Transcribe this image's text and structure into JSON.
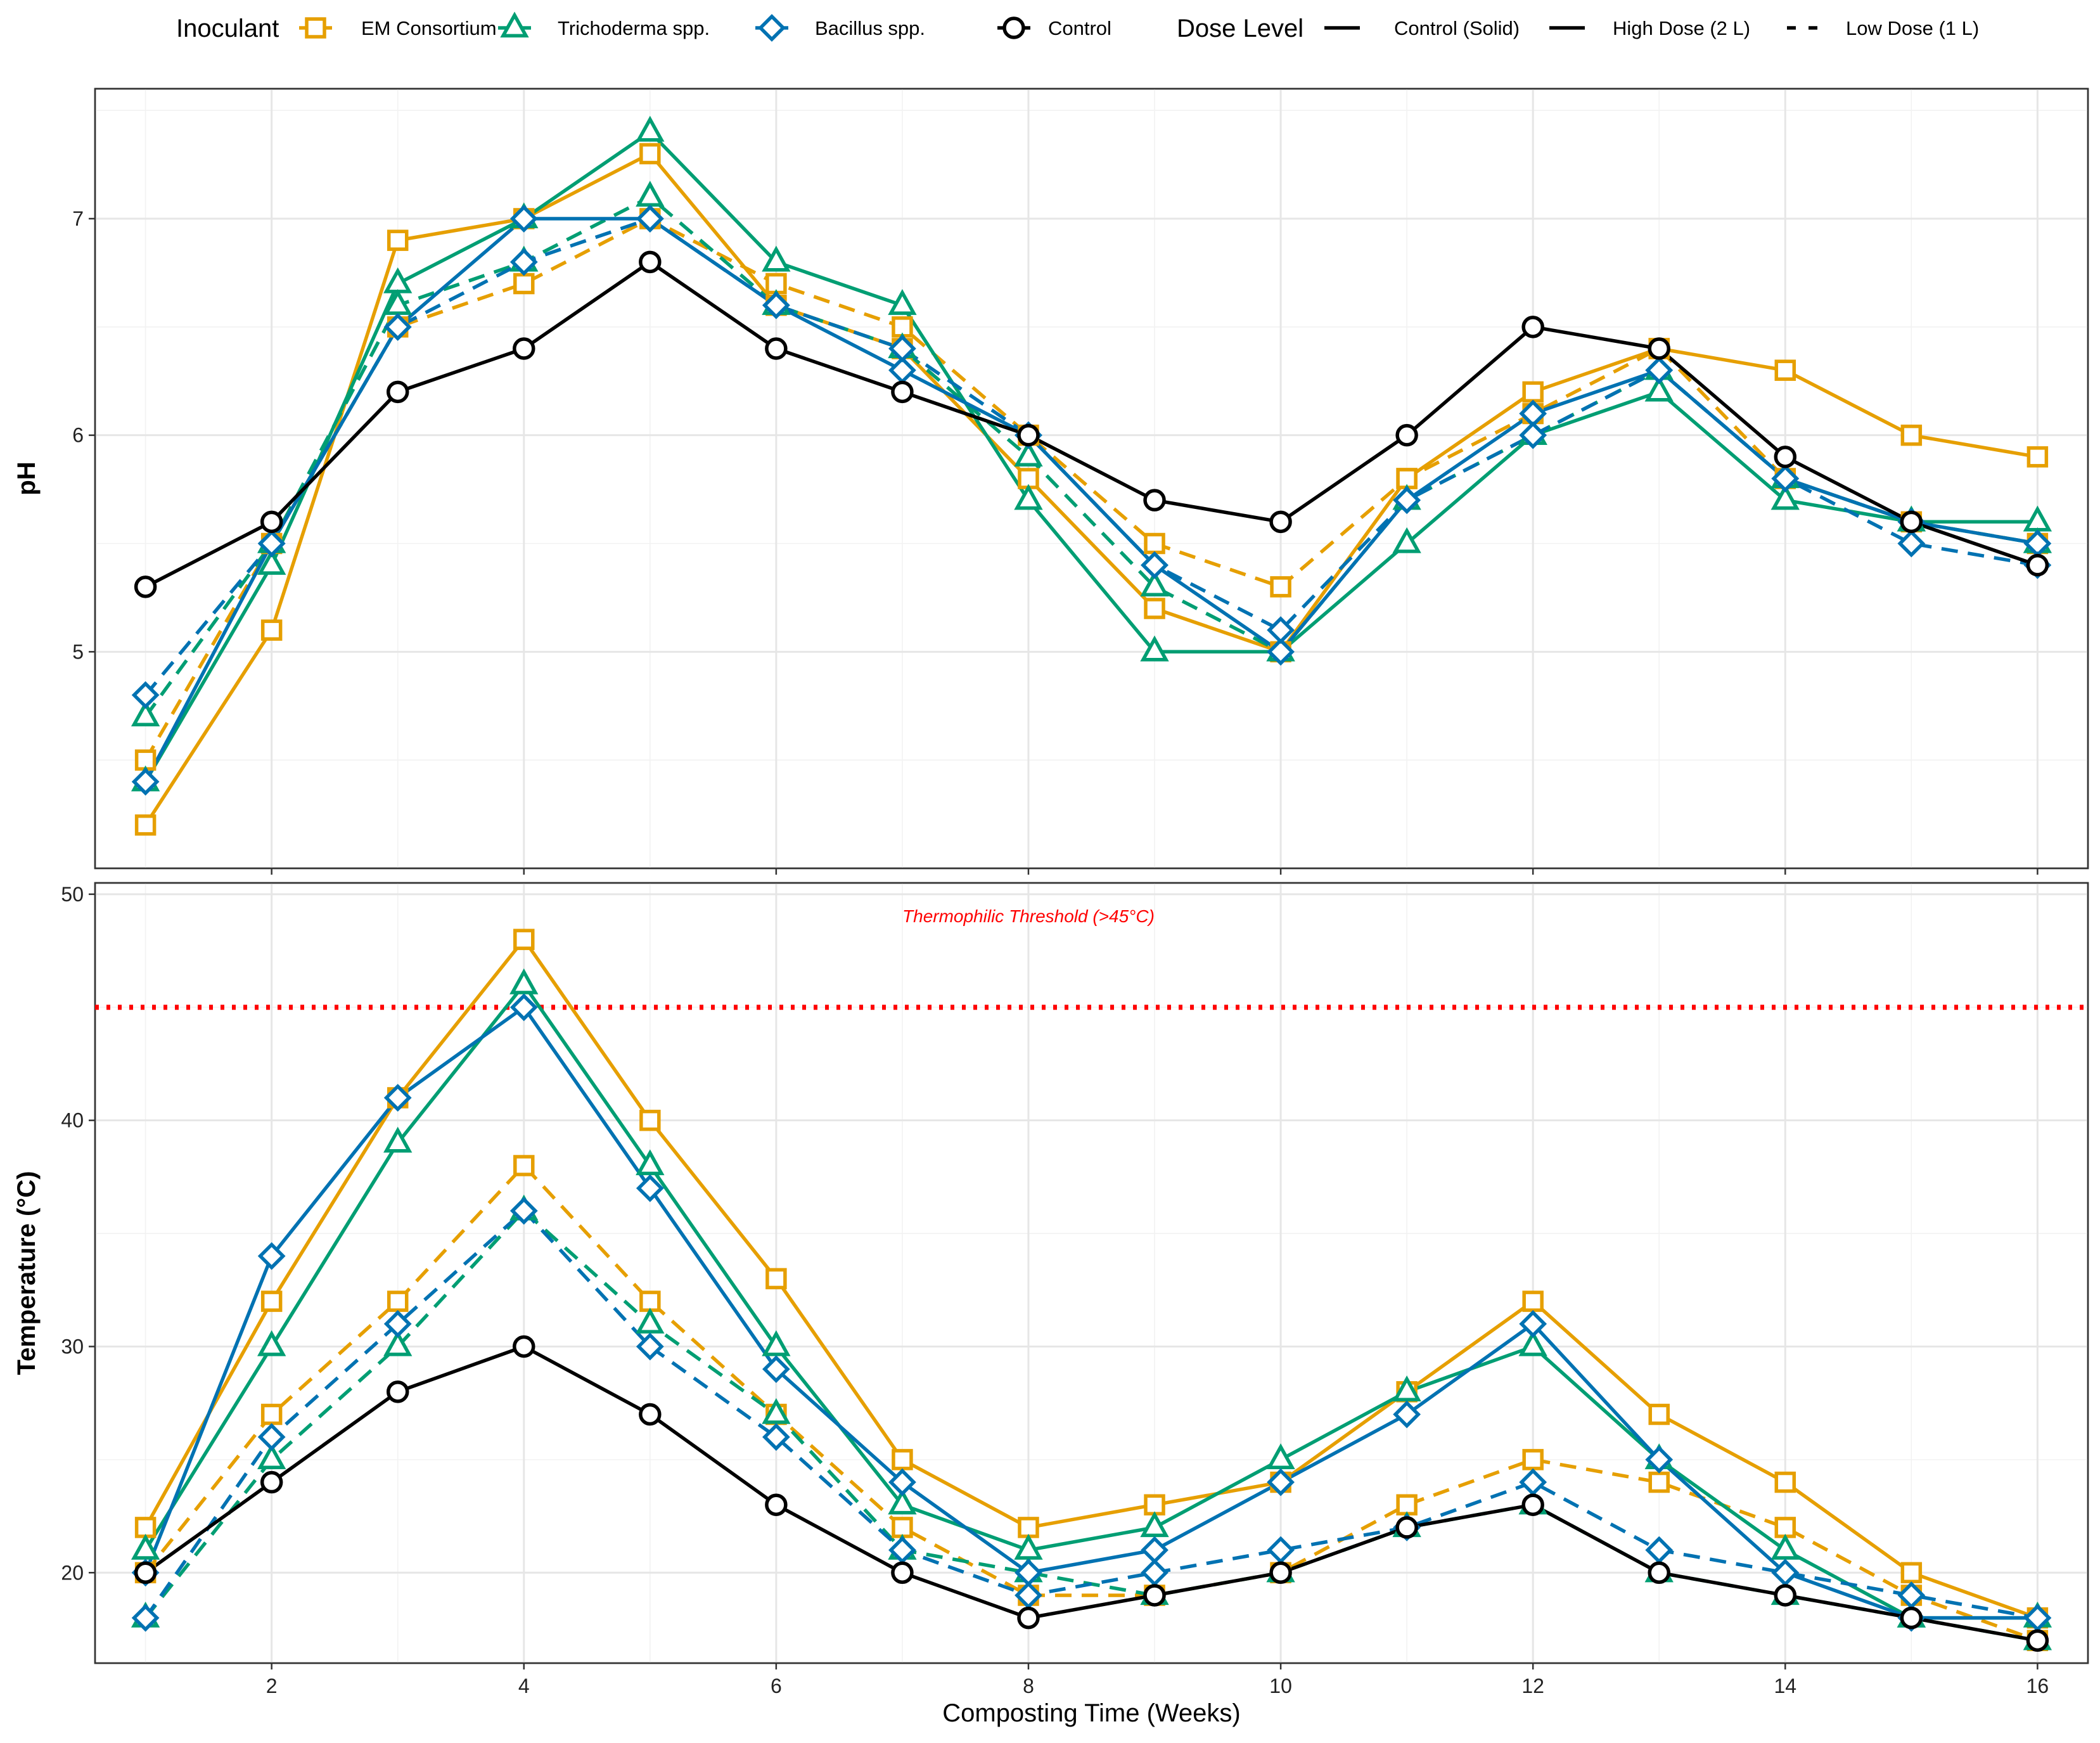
{
  "chart_data": [
    {
      "type": "line",
      "panel": "pH",
      "xlabel": "",
      "ylabel": "pH",
      "xlim": [
        0.6,
        16.4
      ],
      "ylim": [
        4.0,
        7.6
      ],
      "xticks": [
        2,
        4,
        6,
        8,
        10,
        12,
        14,
        16
      ],
      "yticks": [
        5,
        6,
        7
      ],
      "x": [
        1,
        2,
        3,
        4,
        5,
        6,
        7,
        8,
        9,
        10,
        11,
        12,
        13,
        14,
        15,
        16
      ],
      "series": [
        {
          "inoculant": "EM Consortium",
          "dose": "High Dose (2 L)",
          "values": [
            4.2,
            5.1,
            6.9,
            7.0,
            7.3,
            6.6,
            6.4,
            5.8,
            5.2,
            5.0,
            5.8,
            6.2,
            6.4,
            6.3,
            6.0,
            5.9
          ]
        },
        {
          "inoculant": "EM Consortium",
          "dose": "Low Dose (1 L)",
          "values": [
            4.5,
            5.5,
            6.5,
            6.7,
            7.0,
            6.7,
            6.5,
            6.0,
            5.5,
            5.3,
            5.8,
            6.1,
            6.4,
            5.8,
            5.6,
            5.5
          ]
        },
        {
          "inoculant": "Trichoderma spp.",
          "dose": "High Dose (2 L)",
          "values": [
            4.4,
            5.4,
            6.7,
            7.0,
            7.4,
            6.8,
            6.6,
            5.7,
            5.0,
            5.0,
            5.5,
            6.0,
            6.2,
            5.7,
            5.6,
            5.6
          ]
        },
        {
          "inoculant": "Trichoderma spp.",
          "dose": "Low Dose (1 L)",
          "values": [
            4.7,
            5.5,
            6.6,
            6.8,
            7.1,
            6.6,
            6.4,
            5.9,
            5.3,
            5.0,
            5.7,
            6.0,
            6.3,
            5.8,
            5.6,
            5.5
          ]
        },
        {
          "inoculant": "Bacillus spp.",
          "dose": "High Dose (2 L)",
          "values": [
            4.4,
            5.5,
            6.5,
            7.0,
            7.0,
            6.6,
            6.3,
            6.0,
            5.4,
            5.0,
            5.7,
            6.1,
            6.3,
            5.8,
            5.6,
            5.5
          ]
        },
        {
          "inoculant": "Bacillus spp.",
          "dose": "Low Dose (1 L)",
          "values": [
            4.8,
            5.5,
            6.5,
            6.8,
            7.0,
            6.6,
            6.4,
            6.0,
            5.4,
            5.1,
            5.7,
            6.0,
            6.3,
            5.8,
            5.5,
            5.4
          ]
        },
        {
          "inoculant": "Control",
          "dose": "Control (Solid)",
          "values": [
            5.3,
            5.6,
            6.2,
            6.4,
            6.8,
            6.4,
            6.2,
            6.0,
            5.7,
            5.6,
            6.0,
            6.5,
            6.4,
            5.9,
            5.6,
            5.4
          ]
        }
      ]
    },
    {
      "type": "line",
      "panel": "Temperature",
      "xlabel": "Composting Time (Weeks)",
      "ylabel": "Temperature (°C)",
      "xlim": [
        0.6,
        16.4
      ],
      "ylim": [
        16.0,
        50.5
      ],
      "xticks": [
        2,
        4,
        6,
        8,
        10,
        12,
        14,
        16
      ],
      "yticks": [
        20,
        30,
        40,
        50
      ],
      "x": [
        1,
        2,
        3,
        4,
        5,
        6,
        7,
        8,
        9,
        10,
        11,
        12,
        13,
        14,
        15,
        16
      ],
      "threshold": {
        "value": 45,
        "label": "Thermophilic Threshold (>45°C)",
        "color": "#ff0000"
      },
      "series": [
        {
          "inoculant": "EM Consortium",
          "dose": "High Dose (2 L)",
          "values": [
            22,
            32,
            41,
            48,
            40,
            33,
            25,
            22,
            23,
            24,
            28,
            32,
            27,
            24,
            20,
            18
          ]
        },
        {
          "inoculant": "EM Consortium",
          "dose": "Low Dose (1 L)",
          "values": [
            20,
            27,
            32,
            38,
            32,
            27,
            22,
            19,
            19,
            20,
            23,
            25,
            24,
            22,
            19,
            17
          ]
        },
        {
          "inoculant": "Trichoderma spp.",
          "dose": "High Dose (2 L)",
          "values": [
            21,
            30,
            39,
            46,
            38,
            30,
            23,
            21,
            22,
            25,
            28,
            30,
            25,
            21,
            18,
            18
          ]
        },
        {
          "inoculant": "Trichoderma spp.",
          "dose": "Low Dose (1 L)",
          "values": [
            18,
            25,
            30,
            36,
            31,
            27,
            21,
            20,
            19,
            20,
            22,
            23,
            20,
            19,
            18,
            17
          ]
        },
        {
          "inoculant": "Bacillus spp.",
          "dose": "High Dose (2 L)",
          "values": [
            20,
            34,
            41,
            45,
            37,
            29,
            24,
            20,
            21,
            24,
            27,
            31,
            25,
            20,
            18,
            18
          ]
        },
        {
          "inoculant": "Bacillus spp.",
          "dose": "Low Dose (1 L)",
          "values": [
            18,
            26,
            31,
            36,
            30,
            26,
            21,
            19,
            20,
            21,
            22,
            24,
            21,
            20,
            19,
            18
          ]
        },
        {
          "inoculant": "Control",
          "dose": "Control (Solid)",
          "values": [
            20,
            24,
            28,
            30,
            27,
            23,
            20,
            18,
            19,
            20,
            22,
            23,
            20,
            19,
            18,
            17
          ]
        }
      ]
    }
  ],
  "legend": {
    "inoculant_title": "Inoculant",
    "inoculants": [
      {
        "name": "EM Consortium",
        "color": "#E69F00",
        "shape": "square"
      },
      {
        "name": "Trichoderma spp.",
        "color": "#009E73",
        "shape": "triangle"
      },
      {
        "name": "Bacillus spp.",
        "color": "#0072B2",
        "shape": "diamond"
      },
      {
        "name": "Control",
        "color": "#000000",
        "shape": "circle"
      }
    ],
    "dose_title": "Dose Level",
    "doses": [
      {
        "name": "Control (Solid)",
        "linetype": "solid"
      },
      {
        "name": "High Dose (2 L)",
        "linetype": "solid"
      },
      {
        "name": "Low Dose (1 L)",
        "linetype": "dashed"
      }
    ]
  }
}
